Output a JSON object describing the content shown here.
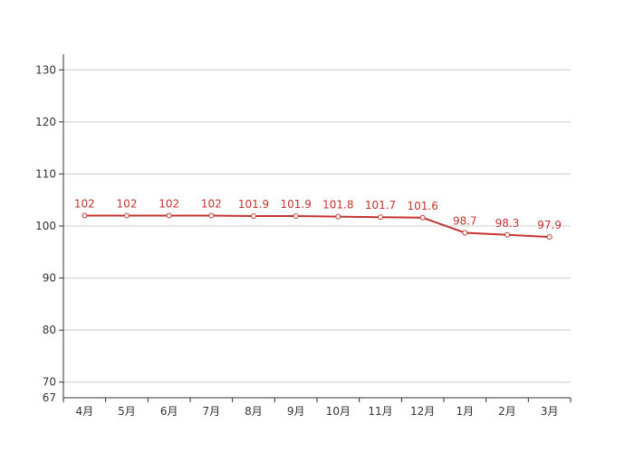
{
  "chart_data": {
    "type": "line",
    "title": "",
    "xlabel": "",
    "ylabel": "",
    "categories": [
      "4月",
      "5月",
      "6月",
      "7月",
      "8月",
      "9月",
      "10月",
      "11月",
      "12月",
      "1月",
      "2月",
      "3月"
    ],
    "series": [
      {
        "values": [
          102,
          102,
          102,
          102,
          101.9,
          101.9,
          101.8,
          101.7,
          101.6,
          98.7,
          98.3,
          97.9
        ],
        "labels": [
          "102",
          "102",
          "102",
          "102",
          "101.9",
          "101.9",
          "101.8",
          "101.7",
          "101.6",
          "98.7",
          "98.3",
          "97.9"
        ],
        "color": "#c23531"
      }
    ],
    "ylim": [
      67,
      130
    ],
    "yticks": [
      70,
      80,
      90,
      100,
      110,
      120,
      130
    ],
    "ytick_labels": [
      "70",
      "80",
      "90",
      "100",
      "110",
      "120",
      "130"
    ],
    "ymin_label": "67",
    "grid": true,
    "legend": "none",
    "colors": {
      "line": "#c23531",
      "grid": "#cccccc",
      "axis": "#333333",
      "text": "#333333"
    }
  }
}
